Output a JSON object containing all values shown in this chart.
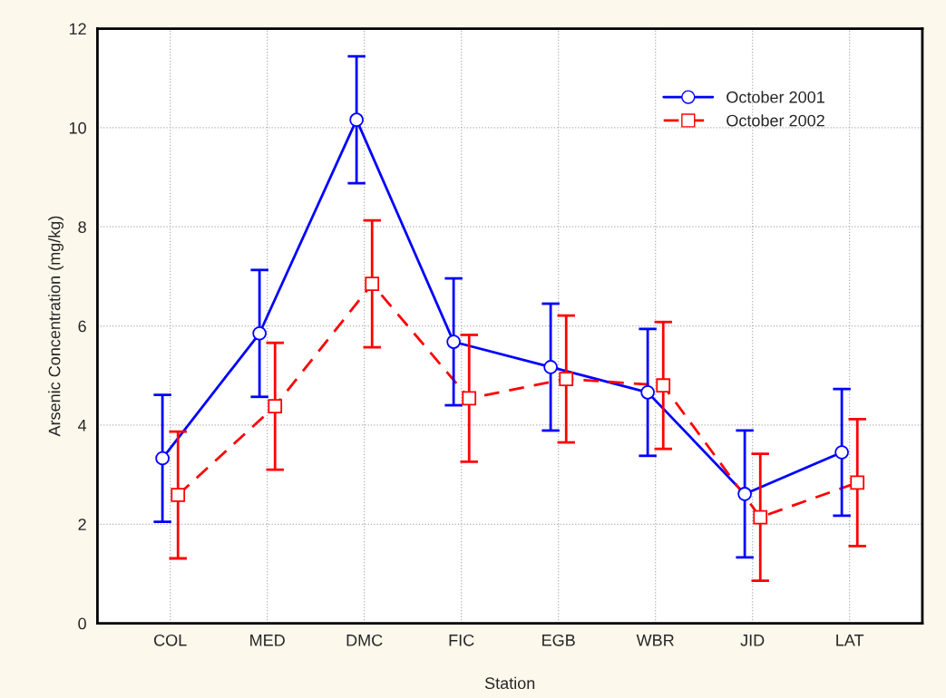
{
  "chart_data": {
    "type": "line",
    "xlabel": "Station",
    "ylabel": "Arsenic Concentration (mg/kg)",
    "categories": [
      "COL",
      "MED",
      "DMC",
      "FIC",
      "EGB",
      "WBR",
      "JID",
      "LAT"
    ],
    "series": [
      {
        "name": "October 2001",
        "color": "#0000ff",
        "marker": "circle",
        "line_style": "solid",
        "values": [
          3.33,
          5.85,
          10.16,
          5.68,
          5.17,
          4.66,
          2.61,
          3.45
        ],
        "errors": [
          1.28,
          1.28,
          1.28,
          1.28,
          1.28,
          1.28,
          1.28,
          1.28
        ]
      },
      {
        "name": "October 2002",
        "color": "#ff0000",
        "marker": "square",
        "line_style": "dashed",
        "values": [
          2.59,
          4.38,
          6.85,
          4.54,
          4.93,
          4.8,
          2.14,
          2.84
        ],
        "errors": [
          1.28,
          1.28,
          1.28,
          1.28,
          1.28,
          1.28,
          1.28,
          1.28
        ]
      }
    ],
    "ylim": [
      0,
      12
    ],
    "yticks": [
      0,
      2,
      4,
      6,
      8,
      10,
      12
    ],
    "grid": true,
    "legend": "top right"
  }
}
